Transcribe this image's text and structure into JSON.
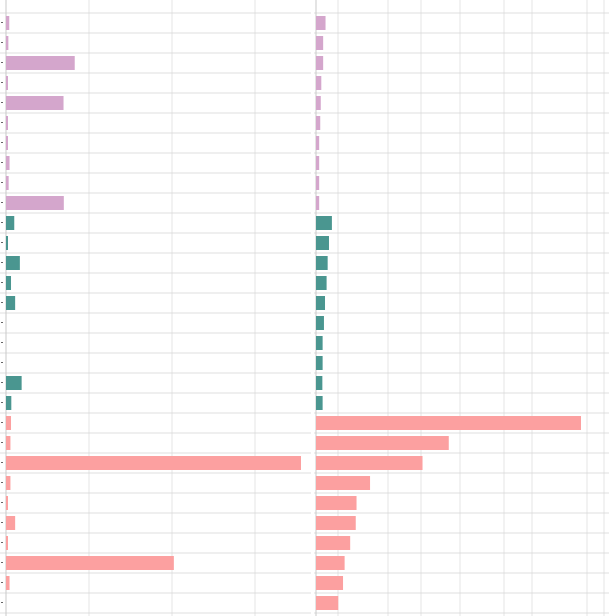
{
  "chart_data": {
    "type": "bar",
    "orientation": "horizontal",
    "grid": true,
    "colors": {
      "group1": "#d4a6cc",
      "group2": "#4a9690",
      "group3": "#fca0a0",
      "grid": "#d4d4d4",
      "panel_edge": "#c8c8c8"
    },
    "groups": [
      {
        "color_key": "group1",
        "rows": 10
      },
      {
        "color_key": "group2",
        "rows": 10
      },
      {
        "color_key": "group3",
        "rows": 10
      }
    ],
    "panels": [
      {
        "xlim": [
          0,
          1.0
        ],
        "values": [
          0.011,
          0.008,
          0.233,
          0.003,
          0.195,
          0.005,
          0.005,
          0.012,
          0.009,
          0.196,
          0.028,
          0.006,
          0.047,
          0.017,
          0.031,
          0.0,
          0.0,
          0.0,
          0.053,
          0.018,
          0.017,
          0.015,
          1.0,
          0.015,
          0.001,
          0.031,
          0.005,
          0.569,
          0.012,
          0.0
        ]
      },
      {
        "xlim": [
          0,
          1.0
        ],
        "values": [
          0.036,
          0.027,
          0.027,
          0.02,
          0.018,
          0.016,
          0.012,
          0.012,
          0.012,
          0.012,
          0.06,
          0.049,
          0.044,
          0.04,
          0.034,
          0.03,
          0.025,
          0.025,
          0.024,
          0.025,
          1.0,
          0.501,
          0.402,
          0.204,
          0.153,
          0.15,
          0.129,
          0.108,
          0.102,
          0.084
        ]
      }
    ]
  }
}
